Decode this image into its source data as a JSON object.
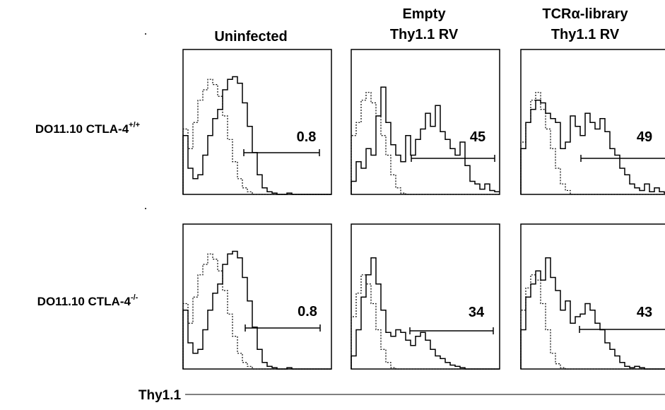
{
  "columns": [
    {
      "line1": "",
      "line2": "Uninfected"
    },
    {
      "line1": "Empty",
      "line2": "Thy1.1 RV"
    },
    {
      "line1": "TCRα-library",
      "line2": "Thy1.1 RV"
    }
  ],
  "rows": [
    {
      "label_base": "DO11.10 CTLA-4",
      "label_sup": "+/+"
    },
    {
      "label_base": "DO11.10 CTLA-4",
      "label_sup": "-/-"
    }
  ],
  "x_axis_label": "Thy1.1",
  "chart_data": {
    "type": "histogram-grid",
    "panels": [
      {
        "row": 0,
        "col": 0,
        "gate_percent": "0.8",
        "solid": [
          0.45,
          0.2,
          0.12,
          0.15,
          0.3,
          0.45,
          0.58,
          0.65,
          0.8,
          0.88,
          0.9,
          0.85,
          0.7,
          0.52,
          0.32,
          0.15,
          0.05,
          0.02,
          0.01,
          0,
          0,
          0.01,
          0,
          0,
          0,
          0,
          0,
          0,
          0,
          0
        ],
        "dotted": [
          0.5,
          0.35,
          0.55,
          0.72,
          0.8,
          0.88,
          0.84,
          0.75,
          0.6,
          0.42,
          0.25,
          0.12,
          0.05,
          0.02,
          0,
          0,
          0,
          0,
          0,
          0,
          0,
          0,
          0,
          0,
          0,
          0,
          0,
          0,
          0,
          0
        ]
      },
      {
        "row": 0,
        "col": 1,
        "gate_percent": "45",
        "solid": [
          0.1,
          0.25,
          0.2,
          0.35,
          0.3,
          0.6,
          0.82,
          0.55,
          0.38,
          0.3,
          0.25,
          0.45,
          0.3,
          0.42,
          0.5,
          0.62,
          0.52,
          0.68,
          0.48,
          0.42,
          0.35,
          0.3,
          0.4,
          0.22,
          0.1,
          0.08,
          0.04,
          0.08,
          0.03,
          0.02
        ],
        "dotted": [
          0.45,
          0.55,
          0.72,
          0.78,
          0.7,
          0.6,
          0.45,
          0.3,
          0.15,
          0.05,
          0.01,
          0,
          0,
          0,
          0,
          0,
          0,
          0,
          0,
          0,
          0,
          0,
          0,
          0,
          0,
          0,
          0,
          0,
          0,
          0
        ]
      },
      {
        "row": 0,
        "col": 2,
        "gate_percent": "49",
        "solid": [
          0.35,
          0.55,
          0.65,
          0.72,
          0.7,
          0.62,
          0.58,
          0.55,
          0.35,
          0.4,
          0.6,
          0.52,
          0.45,
          0.62,
          0.55,
          0.5,
          0.58,
          0.48,
          0.35,
          0.3,
          0.2,
          0.15,
          0.08,
          0.05,
          0.03,
          0.08,
          0.02,
          0.05,
          0.02,
          0.01
        ],
        "dotted": [
          0.4,
          0.55,
          0.72,
          0.78,
          0.65,
          0.5,
          0.35,
          0.2,
          0.08,
          0.03,
          0,
          0,
          0,
          0,
          0,
          0,
          0,
          0,
          0,
          0,
          0,
          0,
          0,
          0,
          0,
          0,
          0,
          0,
          0,
          0
        ]
      },
      {
        "row": 1,
        "col": 0,
        "gate_percent": "0.8",
        "solid": [
          0.45,
          0.2,
          0.12,
          0.15,
          0.3,
          0.45,
          0.58,
          0.65,
          0.8,
          0.88,
          0.9,
          0.85,
          0.7,
          0.52,
          0.32,
          0.15,
          0.05,
          0.02,
          0.01,
          0,
          0,
          0.01,
          0,
          0,
          0,
          0,
          0,
          0,
          0,
          0
        ],
        "dotted": [
          0.5,
          0.35,
          0.55,
          0.72,
          0.8,
          0.88,
          0.84,
          0.75,
          0.6,
          0.42,
          0.25,
          0.12,
          0.05,
          0.02,
          0,
          0,
          0,
          0,
          0,
          0,
          0,
          0,
          0,
          0,
          0,
          0,
          0,
          0,
          0,
          0
        ]
      },
      {
        "row": 1,
        "col": 1,
        "gate_percent": "34",
        "solid": [
          0.1,
          0.3,
          0.55,
          0.72,
          0.85,
          0.65,
          0.45,
          0.28,
          0.25,
          0.3,
          0.28,
          0.22,
          0.18,
          0.25,
          0.28,
          0.22,
          0.15,
          0.1,
          0.08,
          0.05,
          0.03,
          0.02,
          0.01,
          0,
          0,
          0,
          0,
          0,
          0,
          0
        ],
        "dotted": [
          0.4,
          0.58,
          0.72,
          0.65,
          0.5,
          0.3,
          0.15,
          0.05,
          0.01,
          0,
          0,
          0,
          0,
          0,
          0,
          0,
          0,
          0,
          0,
          0,
          0,
          0,
          0,
          0,
          0,
          0,
          0,
          0,
          0,
          0
        ]
      },
      {
        "row": 1,
        "col": 2,
        "gate_percent": "43",
        "solid": [
          0.3,
          0.55,
          0.65,
          0.75,
          0.68,
          0.85,
          0.7,
          0.6,
          0.45,
          0.52,
          0.35,
          0.4,
          0.42,
          0.5,
          0.45,
          0.35,
          0.3,
          0.2,
          0.15,
          0.1,
          0.05,
          0.02,
          0.01,
          0.02,
          0.01,
          0,
          0,
          0,
          0,
          0
        ],
        "dotted": [
          0.45,
          0.62,
          0.72,
          0.68,
          0.5,
          0.3,
          0.12,
          0.04,
          0.01,
          0,
          0,
          0,
          0,
          0,
          0,
          0,
          0,
          0,
          0,
          0,
          0,
          0,
          0,
          0,
          0,
          0,
          0,
          0,
          0,
          0
        ]
      }
    ]
  }
}
